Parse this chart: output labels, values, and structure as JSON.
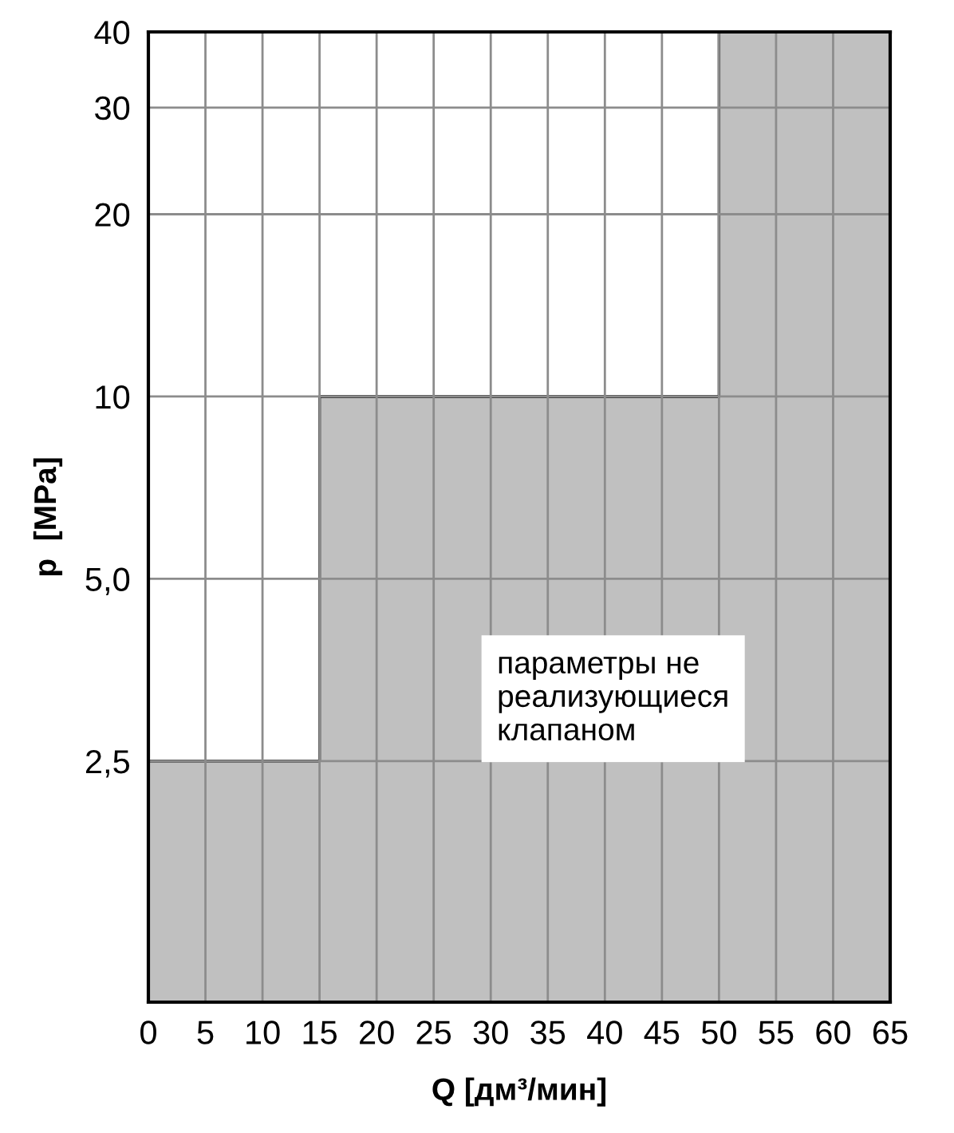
{
  "chart_data": {
    "type": "area",
    "xlabel": "Q [дм³/мин]",
    "ylabel": "p  [MPa]",
    "x": [
      0,
      15,
      15,
      50,
      50,
      65
    ],
    "series": [
      {
        "color": "#c0c0c0",
        "values": [
          2.5,
          2.5,
          10,
          10,
          40,
          40
        ]
      }
    ],
    "xlim": [
      0,
      65
    ],
    "xticks": [
      0,
      5,
      10,
      15,
      20,
      25,
      30,
      35,
      40,
      45,
      50,
      55,
      60,
      65
    ],
    "log": "y",
    "ylim": [
      1,
      40
    ],
    "yticks": [
      {
        "value": 2.5,
        "label": "2,5"
      },
      {
        "value": 5,
        "label": "5,0"
      },
      10,
      20,
      30,
      40
    ],
    "grid": true,
    "annotations": [
      "параметры не\nреализующиеся\nклапаном"
    ]
  }
}
